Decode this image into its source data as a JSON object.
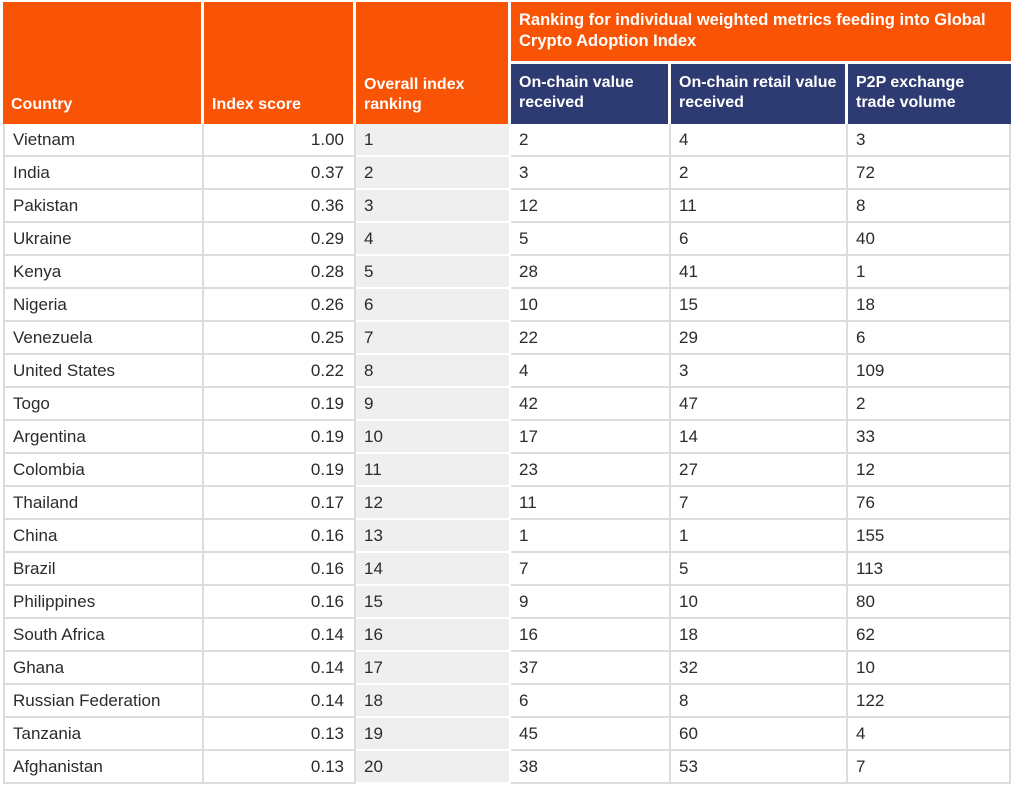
{
  "colors": {
    "header_orange": "#F95305",
    "header_navy": "#2E3B72",
    "ranking_column_bg": "#EFEFEF",
    "grid_line": "#DCDCDC",
    "header_text": "#FFFFFF",
    "body_text": "#2B2B2B"
  },
  "table": {
    "group_header": "Ranking for individual weighted metrics feeding into Global Crypto Adoption Index",
    "columns": [
      {
        "label": "Country"
      },
      {
        "label": "Index score"
      },
      {
        "label": "Overall index ranking"
      },
      {
        "label": "On-chain value received"
      },
      {
        "label": "On-chain retail value received"
      },
      {
        "label": "P2P exchange trade volume"
      }
    ]
  },
  "chart_data": {
    "type": "table",
    "title": "Ranking for individual weighted metrics feeding into Global Crypto Adoption Index",
    "columns": [
      "Country",
      "Index score",
      "Overall index ranking",
      "On-chain value received",
      "On-chain retail value received",
      "P2P exchange trade volume"
    ],
    "rows": [
      [
        "Vietnam",
        "1.00",
        "1",
        "2",
        "4",
        "3"
      ],
      [
        "India",
        "0.37",
        "2",
        "3",
        "2",
        "72"
      ],
      [
        "Pakistan",
        "0.36",
        "3",
        "12",
        "11",
        "8"
      ],
      [
        "Ukraine",
        "0.29",
        "4",
        "5",
        "6",
        "40"
      ],
      [
        "Kenya",
        "0.28",
        "5",
        "28",
        "41",
        "1"
      ],
      [
        "Nigeria",
        "0.26",
        "6",
        "10",
        "15",
        "18"
      ],
      [
        "Venezuela",
        "0.25",
        "7",
        "22",
        "29",
        "6"
      ],
      [
        "United States",
        "0.22",
        "8",
        "4",
        "3",
        "109"
      ],
      [
        "Togo",
        "0.19",
        "9",
        "42",
        "47",
        "2"
      ],
      [
        "Argentina",
        "0.19",
        "10",
        "17",
        "14",
        "33"
      ],
      [
        "Colombia",
        "0.19",
        "11",
        "23",
        "27",
        "12"
      ],
      [
        "Thailand",
        "0.17",
        "12",
        "11",
        "7",
        "76"
      ],
      [
        "China",
        "0.16",
        "13",
        "1",
        "1",
        "155"
      ],
      [
        "Brazil",
        "0.16",
        "14",
        "7",
        "5",
        "113"
      ],
      [
        "Philippines",
        "0.16",
        "15",
        "9",
        "10",
        "80"
      ],
      [
        "South Africa",
        "0.14",
        "16",
        "16",
        "18",
        "62"
      ],
      [
        "Ghana",
        "0.14",
        "17",
        "37",
        "32",
        "10"
      ],
      [
        "Russian Federation",
        "0.14",
        "18",
        "6",
        "8",
        "122"
      ],
      [
        "Tanzania",
        "0.13",
        "19",
        "45",
        "60",
        "4"
      ],
      [
        "Afghanistan",
        "0.13",
        "20",
        "38",
        "53",
        "7"
      ]
    ]
  }
}
